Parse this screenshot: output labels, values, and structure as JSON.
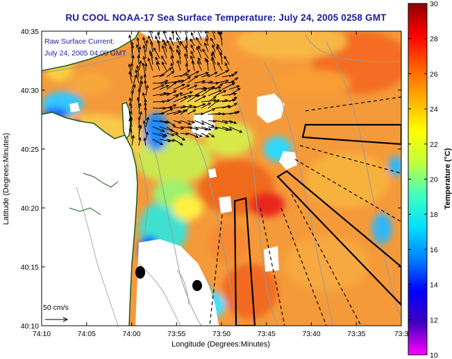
{
  "title": "RU COOL  NOAA-17  Sea Surface Temperature:  July 24, 2005 0258 GMT",
  "annotation": {
    "line1": "Raw Surface Current:",
    "line2": "July 24, 2005 04:00 GMT"
  },
  "axes": {
    "xlabel": "Longitude (Degrees:Minutes)",
    "ylabel": "Latitude (Degrees:Minutes)",
    "x_ticks": [
      "74:10",
      "74:05",
      "74:00",
      "73:55",
      "73:50",
      "73:45",
      "73:40",
      "73:35",
      "73:3"
    ],
    "y_ticks": [
      "40:35",
      "40:30",
      "40:25",
      "40:20",
      "40:15",
      "40:10"
    ]
  },
  "scale": {
    "label": "50 cm/s"
  },
  "colorbar": {
    "title": "Temperature (°C)",
    "ticks": [
      "30",
      "28",
      "26",
      "24",
      "22",
      "20",
      "18",
      "16",
      "14",
      "12",
      "10"
    ],
    "stops": [
      "#ff00ff",
      "#4000c0",
      "#0000ff",
      "#0080ff",
      "#00e0ff",
      "#40ffc0",
      "#c0ff40",
      "#ffff00",
      "#ffb000",
      "#ff6000",
      "#ff0000",
      "#900000"
    ]
  },
  "colors": {
    "land": "#ffffff",
    "warm": "#f7a13c",
    "title": "#1a1aa0"
  }
}
